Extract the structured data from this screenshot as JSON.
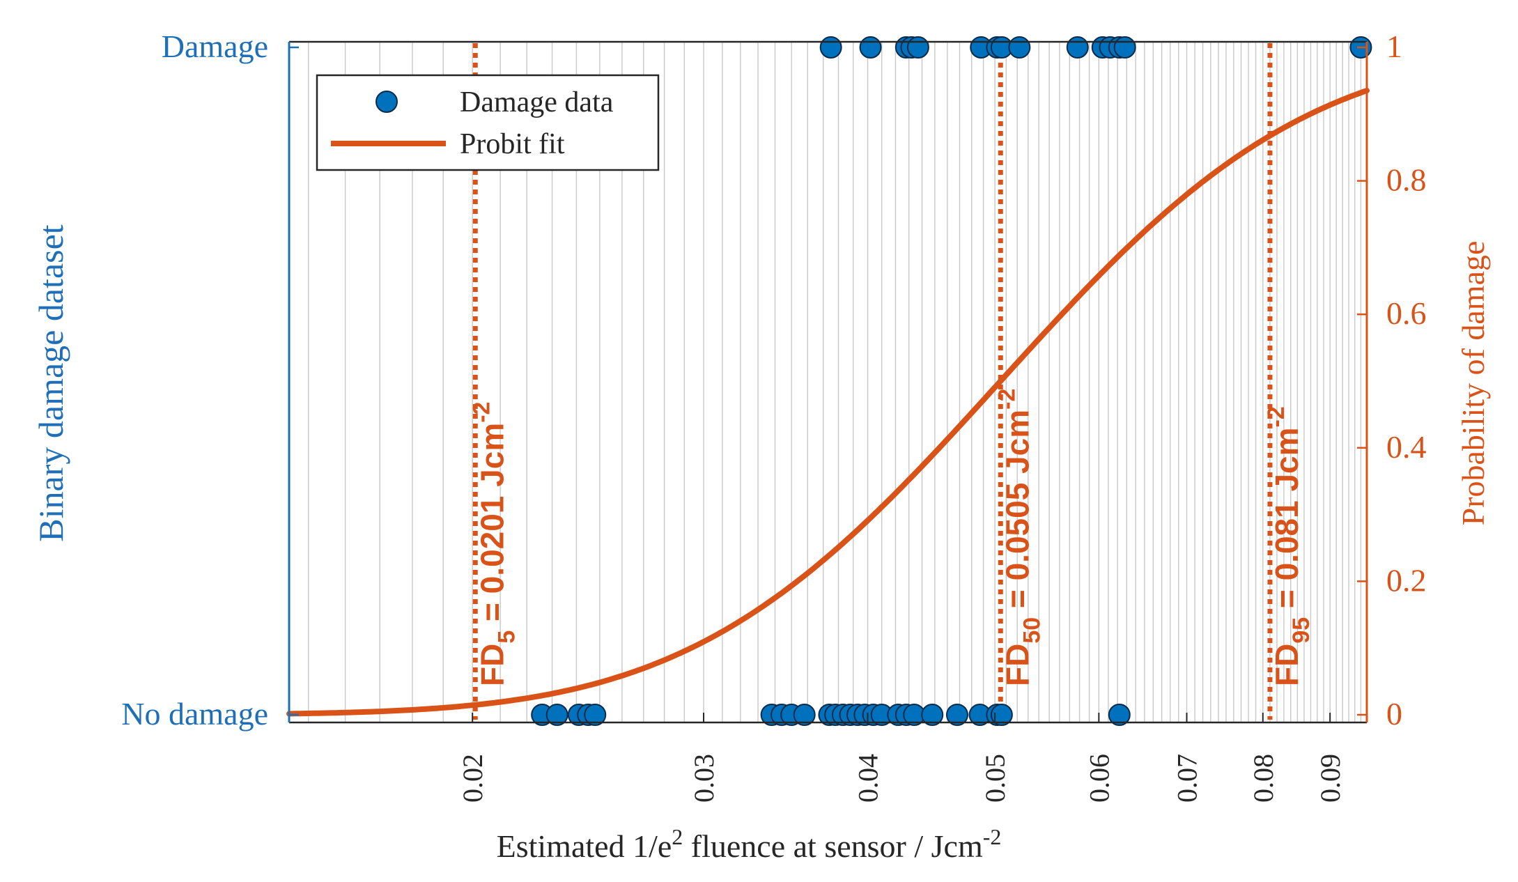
{
  "chart_data": {
    "type": "scatter",
    "x_scale": "log",
    "xlim": [
      0.0145,
      0.096
    ],
    "xlabel_main": "Estimated 1/e",
    "xlabel_sup": "2",
    "xlabel_tail": " fluence at sensor / Jcm",
    "xlabel_sup2": "-2",
    "xticks": [
      0.02,
      0.03,
      0.04,
      0.05,
      0.06,
      0.07,
      0.08,
      0.09
    ],
    "xtick_labels": [
      "0.02",
      "0.03",
      "0.04",
      "0.05",
      "0.06",
      "0.07",
      "0.08",
      "0.09"
    ],
    "left_axis": {
      "label": "Binary damage dataset",
      "ticks": [
        0,
        1
      ],
      "tick_labels": [
        "No damage",
        "Damage"
      ],
      "color": "#1f6fb8"
    },
    "right_axis": {
      "label": "Probability of damage",
      "ylim": [
        0,
        1
      ],
      "ticks": [
        0,
        0.2,
        0.4,
        0.6,
        0.8,
        1
      ],
      "tick_labels": [
        "0",
        "0.2",
        "0.4",
        "0.6",
        "0.8",
        "1"
      ],
      "color": "#d95319"
    },
    "legend": {
      "position": "top-left",
      "entries": [
        {
          "label": "Damage data",
          "kind": "marker"
        },
        {
          "label": "Probit fit",
          "kind": "line"
        }
      ]
    },
    "series": [
      {
        "name": "Damage data",
        "outcome": "No damage",
        "color": "#0072bd",
        "x": [
          0.0226,
          0.0232,
          0.0241,
          0.0245,
          0.0248,
          0.0338,
          0.0344,
          0.035,
          0.0358,
          0.0374,
          0.0378,
          0.0383,
          0.0388,
          0.0393,
          0.0398,
          0.0404,
          0.041,
          0.0422,
          0.0428,
          0.0434,
          0.0448,
          0.0468,
          0.0487,
          0.0502,
          0.0506,
          0.0622
        ]
      },
      {
        "name": "Damage data",
        "outcome": "Damage",
        "color": "#0072bd",
        "x": [
          0.0375,
          0.0402,
          0.0428,
          0.0432,
          0.0437,
          0.0488,
          0.0502,
          0.0506,
          0.0522,
          0.0578,
          0.0604,
          0.0612,
          0.0622,
          0.0628,
          0.095
        ]
      },
      {
        "name": "Probit fit",
        "color": "#d95319",
        "fd50": 0.0505,
        "fd5": 0.0201,
        "fd95": 0.081
      }
    ],
    "annotations": [
      {
        "name": "fd5",
        "x": 0.0201,
        "base": "FD",
        "sub": "5",
        "text": " = 0.0201 Jcm",
        "sup": "-2"
      },
      {
        "name": "fd50",
        "x": 0.0505,
        "base": "FD",
        "sub": "50",
        "text": " = 0.0505 Jcm",
        "sup": "-2"
      },
      {
        "name": "fd95",
        "x": 0.081,
        "base": "FD",
        "sub": "95",
        "text": " = 0.081 Jcm",
        "sup": "-2"
      }
    ]
  }
}
